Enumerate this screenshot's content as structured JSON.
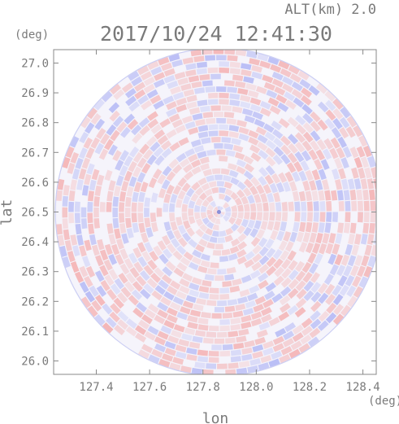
{
  "header": {
    "altitude_label": "ALT(km) 2.0",
    "datetime": "2017/10/24 12:41:30"
  },
  "chart_data": {
    "type": "heatmap",
    "title": "2017/10/24 12:41:30",
    "xlabel": "lon",
    "ylabel": "lat",
    "xunit": "(deg)",
    "yunit": "(deg)",
    "xlim": [
      127.24,
      128.45
    ],
    "ylim": [
      25.955,
      27.045
    ],
    "xticks": [
      "127.4",
      "127.6",
      "127.8",
      "128.0",
      "128.2",
      "128.4"
    ],
    "yticks": [
      "26.0",
      "26.1",
      "26.2",
      "26.3",
      "26.4",
      "26.5",
      "26.6",
      "26.7",
      "26.8",
      "26.9",
      "27.0"
    ],
    "center": {
      "lon": 127.86,
      "lat": 26.5
    },
    "radius_deg_lat": 0.55,
    "colors": {
      "positive": "#f4a6a6",
      "negative": "#a8aef4",
      "axis": "#888888",
      "text": "#7a7a7a"
    },
    "grid": false,
    "legend": "none"
  }
}
